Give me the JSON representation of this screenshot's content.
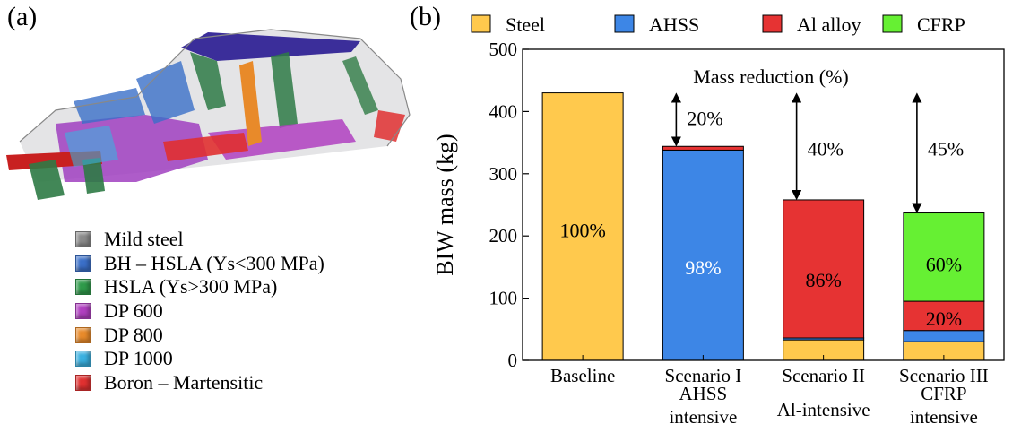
{
  "panel_a": {
    "label": "(a)",
    "illustration": "car-body-in-white-icon",
    "materials": [
      {
        "name": "Mild steel",
        "color": "#8a8a8a"
      },
      {
        "name": "BH – HSLA (Ys<300 MPa)",
        "color": "#3a6fc8"
      },
      {
        "name": "HSLA (Ys>300 MPa)",
        "color": "#2e9a4a"
      },
      {
        "name": "DP 600",
        "color": "#b03fc0"
      },
      {
        "name": "DP 800",
        "color": "#e88a2a"
      },
      {
        "name": "DP 1000",
        "color": "#3ab0e0"
      },
      {
        "name": "Boron – Martensitic",
        "color": "#e03030"
      }
    ]
  },
  "panel_b": {
    "label": "(b)",
    "annotation": "Mass reduction (%)"
  },
  "chart_data": {
    "type": "bar",
    "stacked": true,
    "ylabel": "BIW mass (kg)",
    "ylim": [
      0,
      500
    ],
    "yticks": [
      0,
      100,
      200,
      300,
      400,
      500
    ],
    "categories": [
      [
        "Baseline"
      ],
      [
        "Scenario I",
        "AHSS",
        "intensive"
      ],
      [
        "Scenario II",
        "Al-intensive"
      ],
      [
        "Scenario III",
        "CFRP",
        "intensive"
      ]
    ],
    "series": [
      {
        "name": "Steel",
        "color": "#ffc94d",
        "values": [
          430,
          0,
          33,
          30
        ]
      },
      {
        "name": "AHSS",
        "color": "#3d86e6",
        "values": [
          0,
          338,
          3,
          18
        ]
      },
      {
        "name": "Al alloy",
        "color": "#e63333",
        "values": [
          0,
          6,
          222,
          47
        ]
      },
      {
        "name": "CFRP",
        "color": "#66f033",
        "values": [
          0,
          0,
          0,
          142
        ]
      }
    ],
    "legend_position": "top",
    "bar_labels": [
      {
        "text": "100%",
        "category": 0,
        "y": 210,
        "color": "#000000"
      },
      {
        "text": "98%",
        "category": 1,
        "y": 150,
        "color": "#ffffff"
      },
      {
        "text": "86%",
        "category": 2,
        "y": 130,
        "color": "#000000"
      },
      {
        "text": "60%",
        "category": 3,
        "y": 155,
        "color": "#000000"
      },
      {
        "text": "20%",
        "category": 3,
        "y": 68,
        "color": "#000000"
      }
    ],
    "reductions": [
      {
        "category": 1,
        "from": 430,
        "to": 344,
        "label": "20%"
      },
      {
        "category": 2,
        "from": 430,
        "to": 258,
        "label": "40%"
      },
      {
        "category": 3,
        "from": 430,
        "to": 237,
        "label": "45%"
      }
    ]
  }
}
